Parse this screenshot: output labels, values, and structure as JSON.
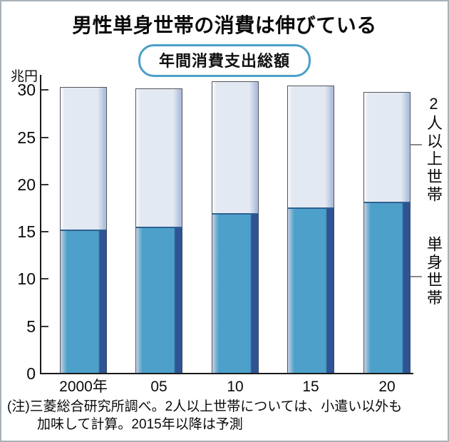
{
  "header": {
    "title": "男性単身世帯の消費は伸びている",
    "badge": "年間消費支出総額"
  },
  "chart_data": {
    "type": "bar",
    "subtype": "stacked",
    "title": "男性単身世帯の消費は伸びている",
    "subtitle": "年間消費支出総額",
    "unit_label": "兆円",
    "categories": [
      "2000年",
      "05",
      "10",
      "15",
      "20"
    ],
    "series": [
      {
        "name": "単身世帯",
        "values": [
          15.2,
          15.5,
          17.0,
          17.6,
          18.2
        ],
        "color": "#4da0c9",
        "stack_position": "bottom"
      },
      {
        "name": "2人以上世帯",
        "values": [
          15.1,
          14.7,
          13.9,
          12.9,
          11.6
        ],
        "color": "#e3e9f2",
        "stack_position": "top"
      }
    ],
    "totals": [
      30.3,
      30.2,
      30.9,
      30.5,
      29.8
    ],
    "y_ticks": [
      0,
      5,
      10,
      15,
      20,
      25,
      30
    ],
    "ylim": [
      0,
      31.6
    ],
    "grid": false,
    "legend_position": "right-annotations",
    "note_footnote": "2015年以降は予測"
  },
  "note": {
    "line1": "(注)三菱総合研究所調べ。2人以上世帯については、小遣い以外も",
    "line2": "加味して計算。2015年以降は予測"
  },
  "colors": {
    "single_main": "#4da0c9",
    "single_dark_edge": "#2e5493",
    "single_light_edge": "#c9d2e4",
    "multi_main": "#e3e9f2",
    "multi_edge": "#aebede",
    "multi_light_edge": "#fbfcfe",
    "badge_border": "#4aa0c8",
    "axis": "#1a1a1a",
    "frame": "#aab1b8",
    "text": "#111111"
  }
}
